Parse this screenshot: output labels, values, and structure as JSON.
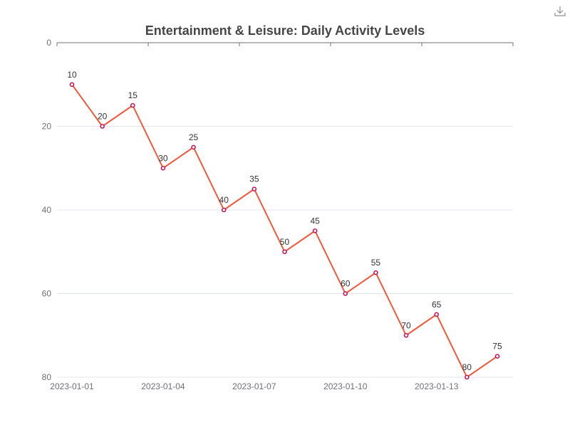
{
  "colors": {
    "line": "#f05a3c",
    "point_stroke": "#c2185b",
    "point_fill": "#ffffff",
    "axis": "#6e7079",
    "grid": "#e0e6f1",
    "icon": "#909090"
  },
  "toolbar": {
    "download_icon": "download-icon"
  },
  "chart_data": {
    "type": "line",
    "title": "Entertainment & Leisure: Daily Activity Levels",
    "xlabel": "",
    "ylabel": "",
    "y_inverted": true,
    "ylim": [
      0,
      80
    ],
    "y_ticks": [
      0,
      20,
      40,
      60,
      80
    ],
    "x": [
      "2023-01-01",
      "2023-01-02",
      "2023-01-03",
      "2023-01-04",
      "2023-01-05",
      "2023-01-06",
      "2023-01-07",
      "2023-01-08",
      "2023-01-09",
      "2023-01-10",
      "2023-01-11",
      "2023-01-12",
      "2023-01-13",
      "2023-01-14",
      "2023-01-15"
    ],
    "x_tick_labels": [
      "2023-01-01",
      "2023-01-04",
      "2023-01-07",
      "2023-01-10",
      "2023-01-13"
    ],
    "series": [
      {
        "values": [
          10,
          20,
          15,
          30,
          25,
          40,
          35,
          50,
          45,
          60,
          55,
          70,
          65,
          80,
          75
        ]
      }
    ],
    "grid": true,
    "data_labels": true
  }
}
